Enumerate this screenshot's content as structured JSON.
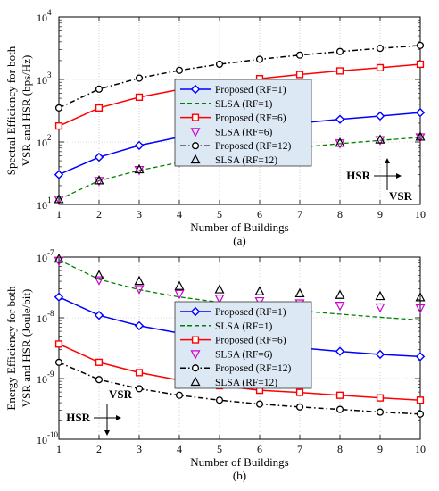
{
  "chart_data": [
    {
      "type": "line",
      "caption": "(a)",
      "xlabel": "Number of Buildings",
      "ylabel": [
        "Spectral Efficiency for both",
        "VSR and HSR (bps/Hz)"
      ],
      "x": [
        1,
        2,
        3,
        4,
        5,
        6,
        7,
        8,
        9,
        10
      ],
      "xlim": [
        1,
        10
      ],
      "ylim": [
        10,
        10000
      ],
      "yscale": "log",
      "ytick_base": "10",
      "ytick_exponents": [
        "1",
        "2",
        "3",
        "4"
      ],
      "grid": true,
      "legend_placement": "center",
      "annotation": {
        "h": "HSR",
        "v": "VSR"
      },
      "series": [
        {
          "name": "Proposed (RF=1)",
          "color": "#0000ff",
          "marker": "diamond",
          "line": "solid",
          "values": [
            30,
            57,
            88,
            120,
            150,
            175,
            200,
            230,
            260,
            295
          ]
        },
        {
          "name": "SLSA (RF=1)",
          "color": "#008000",
          "marker": "none",
          "line": "dashed",
          "values": [
            12,
            24,
            35,
            47,
            58,
            70,
            82,
            94,
            106,
            118
          ]
        },
        {
          "name": "Proposed (RF=6)",
          "color": "#ff0000",
          "marker": "square",
          "line": "solid",
          "values": [
            180,
            350,
            520,
            690,
            860,
            1030,
            1200,
            1370,
            1540,
            1750
          ]
        },
        {
          "name": "SLSA (RF=6)",
          "color": "#cc00cc",
          "marker": "triangle-down",
          "line": "none",
          "values": [
            12,
            24,
            36,
            48,
            60,
            72,
            84,
            96,
            108,
            120
          ]
        },
        {
          "name": "Proposed (RF=12)",
          "color": "#000000",
          "marker": "circle",
          "line": "dashdot",
          "values": [
            350,
            700,
            1050,
            1400,
            1750,
            2100,
            2450,
            2800,
            3150,
            3500
          ]
        },
        {
          "name": "SLSA (RF=12)",
          "color": "#000000",
          "marker": "triangle-up",
          "line": "none",
          "values": [
            12,
            24,
            36,
            48,
            60,
            72,
            84,
            96,
            108,
            120
          ]
        }
      ]
    },
    {
      "type": "line",
      "caption": "(b)",
      "xlabel": "Number of Buildings",
      "ylabel": [
        "Energy Efficiency for both",
        "VSR and HSR (Joule/bit)"
      ],
      "x": [
        1,
        2,
        3,
        4,
        5,
        6,
        7,
        8,
        9,
        10
      ],
      "xlim": [
        1,
        10
      ],
      "ylim": [
        1e-10,
        1e-07
      ],
      "yscale": "log",
      "ytick_base": "10",
      "ytick_exponents": [
        "-10",
        "-9",
        "-8",
        "-7"
      ],
      "grid": true,
      "legend_placement": "center",
      "annotation": {
        "h": "HSR",
        "v": "VSR"
      },
      "series": [
        {
          "name": "Proposed (RF=1)",
          "color": "#0000ff",
          "marker": "diamond",
          "line": "solid",
          "values": [
            2.2e-08,
            1.1e-08,
            7.4e-09,
            5.6e-09,
            4.5e-09,
            3.8e-09,
            3.2e-09,
            2.8e-09,
            2.5e-09,
            2.3e-09
          ]
        },
        {
          "name": "SLSA (RF=1)",
          "color": "#008000",
          "marker": "none",
          "line": "dashed",
          "values": [
            9e-08,
            4.3e-08,
            2.9e-08,
            2.2e-08,
            1.8e-08,
            1.5e-08,
            1.3e-08,
            1.15e-08,
            1.02e-08,
            9.2e-09
          ]
        },
        {
          "name": "Proposed (RF=6)",
          "color": "#ff0000",
          "marker": "square",
          "line": "solid",
          "values": [
            3.7e-09,
            1.85e-09,
            1.25e-09,
            9.4e-10,
            7.6e-10,
            6.4e-10,
            5.9e-10,
            5.3e-10,
            4.8e-10,
            4.4e-10
          ]
        },
        {
          "name": "SLSA (RF=6)",
          "color": "#cc00cc",
          "marker": "triangle-down",
          "line": "none",
          "values": [
            8.8e-08,
            4.2e-08,
            3e-08,
            2.5e-08,
            2.1e-08,
            1.9e-08,
            1.75e-08,
            1.6e-08,
            1.5e-08,
            1.45e-08
          ]
        },
        {
          "name": "Proposed (RF=12)",
          "color": "#000000",
          "marker": "circle",
          "line": "dashdot",
          "values": [
            1.85e-09,
            9.6e-10,
            6.8e-10,
            5.3e-10,
            4.4e-10,
            3.8e-10,
            3.4e-10,
            3.1e-10,
            2.8e-10,
            2.6e-10
          ]
        },
        {
          "name": "SLSA (RF=12)",
          "color": "#000000",
          "marker": "triangle-up",
          "line": "none",
          "values": [
            9.3e-08,
            5e-08,
            4e-08,
            3.3e-08,
            2.9e-08,
            2.7e-08,
            2.5e-08,
            2.35e-08,
            2.25e-08,
            2.15e-08
          ]
        }
      ]
    }
  ]
}
